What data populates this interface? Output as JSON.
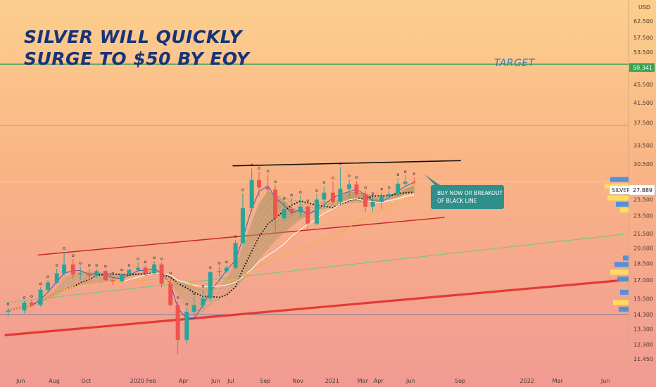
{
  "chart_data": {
    "type": "candlestick",
    "title_lines": [
      "SILVER WILL QUICKLY",
      "SURGE TO $50 BY EOY"
    ],
    "symbol": "SILVER",
    "currency_label": "USD",
    "last_price": 27.889,
    "target_label": "TARGET",
    "target_price": 50.341,
    "annotation_lines": [
      "BUY NOW OR BREAKOUT",
      "OF BLACK LINE"
    ],
    "y_scale": "log",
    "ylim": [
      11.45,
      62.5
    ],
    "y_ticks": [
      "62.500",
      "57.500",
      "53.500",
      "49.500",
      "45.500",
      "41.500",
      "37.500",
      "33.500",
      "30.500",
      "25.500",
      "23.500",
      "21.500",
      "20.000",
      "18.500",
      "17.000",
      "15.500",
      "14.300",
      "13.300",
      "12.300",
      "11.450"
    ],
    "x_ticks": [
      "Jun",
      "Aug",
      "Oct",
      "2020",
      "Feb",
      "Apr",
      "Jun",
      "Jul",
      "Sep",
      "Nov",
      "2021",
      "Mar",
      "Apr",
      "Jun",
      "Sep",
      "2022",
      "Mar",
      "Jun"
    ],
    "x_range_months": [
      "2019-05",
      "2022-07"
    ],
    "horizontal_levels": [
      50.341,
      37.0,
      27.889,
      14.3
    ],
    "trendlines": [
      {
        "from": [
          "2020-07",
          30.2
        ],
        "to": [
          "2021-09",
          31.0
        ],
        "color": "#111111"
      },
      {
        "from": [
          "2019-07",
          19.3
        ],
        "to": [
          "2021-08",
          23.3
        ],
        "color": "#c62828"
      },
      {
        "from": [
          "2019-05",
          12.9
        ],
        "to": [
          "2022-07",
          17.0
        ],
        "color": "#e53935"
      },
      {
        "from": [
          "2019-05",
          15.2
        ],
        "to": [
          "2022-07",
          21.4
        ],
        "color": "#7fc47f"
      }
    ],
    "candles": [
      {
        "t": "2019-05",
        "o": 14.5,
        "h": 14.8,
        "l": 14.1,
        "c": 14.6
      },
      {
        "t": "2019-06",
        "o": 14.6,
        "h": 15.3,
        "l": 14.4,
        "c": 15.2
      },
      {
        "t": "2019-06",
        "o": 15.2,
        "h": 15.4,
        "l": 14.9,
        "c": 15.0
      },
      {
        "t": "2019-07",
        "o": 15.0,
        "h": 16.4,
        "l": 14.9,
        "c": 16.2
      },
      {
        "t": "2019-07",
        "o": 16.2,
        "h": 17.0,
        "l": 16.0,
        "c": 16.8
      },
      {
        "t": "2019-08",
        "o": 16.8,
        "h": 18.0,
        "l": 16.7,
        "c": 17.6
      },
      {
        "t": "2019-08",
        "o": 17.6,
        "h": 19.6,
        "l": 17.4,
        "c": 18.4
      },
      {
        "t": "2019-09",
        "o": 18.4,
        "h": 18.9,
        "l": 17.1,
        "c": 17.5
      },
      {
        "t": "2019-09",
        "o": 17.5,
        "h": 18.2,
        "l": 17.0,
        "c": 17.6
      },
      {
        "t": "2019-10",
        "o": 17.6,
        "h": 18.0,
        "l": 17.0,
        "c": 17.4
      },
      {
        "t": "2019-10",
        "o": 17.4,
        "h": 18.0,
        "l": 17.2,
        "c": 17.8
      },
      {
        "t": "2019-11",
        "o": 17.8,
        "h": 17.9,
        "l": 16.9,
        "c": 17.0
      },
      {
        "t": "2019-11",
        "o": 17.0,
        "h": 17.3,
        "l": 16.6,
        "c": 16.9
      },
      {
        "t": "2019-12",
        "o": 16.9,
        "h": 17.6,
        "l": 16.8,
        "c": 17.5
      },
      {
        "t": "2019-12",
        "o": 17.5,
        "h": 18.0,
        "l": 17.3,
        "c": 17.9
      },
      {
        "t": "2020-01",
        "o": 17.9,
        "h": 18.6,
        "l": 17.7,
        "c": 18.1
      },
      {
        "t": "2020-01",
        "o": 18.1,
        "h": 18.3,
        "l": 17.4,
        "c": 17.6
      },
      {
        "t": "2020-02",
        "o": 17.6,
        "h": 18.7,
        "l": 17.5,
        "c": 18.4
      },
      {
        "t": "2020-02",
        "o": 18.4,
        "h": 18.6,
        "l": 16.4,
        "c": 16.7
      },
      {
        "t": "2020-03",
        "o": 16.7,
        "h": 17.3,
        "l": 14.9,
        "c": 15.0
      },
      {
        "t": "2020-03",
        "o": 15.0,
        "h": 15.3,
        "l": 11.7,
        "c": 12.6
      },
      {
        "t": "2020-04",
        "o": 12.6,
        "h": 14.8,
        "l": 12.4,
        "c": 14.5
      },
      {
        "t": "2020-04",
        "o": 14.5,
        "h": 15.6,
        "l": 14.2,
        "c": 15.0
      },
      {
        "t": "2020-05",
        "o": 15.0,
        "h": 16.2,
        "l": 14.7,
        "c": 15.5
      },
      {
        "t": "2020-05",
        "o": 15.5,
        "h": 17.8,
        "l": 15.3,
        "c": 17.7
      },
      {
        "t": "2020-06",
        "o": 17.7,
        "h": 18.2,
        "l": 17.3,
        "c": 17.8
      },
      {
        "t": "2020-06",
        "o": 17.8,
        "h": 18.3,
        "l": 17.6,
        "c": 18.1
      },
      {
        "t": "2020-07",
        "o": 18.1,
        "h": 20.8,
        "l": 18.0,
        "c": 20.5
      },
      {
        "t": "2020-07",
        "o": 20.5,
        "h": 26.3,
        "l": 20.3,
        "c": 24.4
      },
      {
        "t": "2020-08",
        "o": 24.4,
        "h": 29.8,
        "l": 24.0,
        "c": 28.1
      },
      {
        "t": "2020-08",
        "o": 28.1,
        "h": 29.3,
        "l": 25.9,
        "c": 27.1
      },
      {
        "t": "2020-09",
        "o": 27.1,
        "h": 28.9,
        "l": 26.4,
        "c": 26.8
      },
      {
        "t": "2020-09",
        "o": 26.8,
        "h": 27.4,
        "l": 21.7,
        "c": 23.2
      },
      {
        "t": "2020-10",
        "o": 23.2,
        "h": 25.2,
        "l": 22.9,
        "c": 24.3
      },
      {
        "t": "2020-10",
        "o": 24.3,
        "h": 25.6,
        "l": 23.5,
        "c": 23.9
      },
      {
        "t": "2020-11",
        "o": 23.9,
        "h": 26.0,
        "l": 23.3,
        "c": 24.6
      },
      {
        "t": "2020-11",
        "o": 24.6,
        "h": 24.9,
        "l": 21.9,
        "c": 22.6
      },
      {
        "t": "2020-12",
        "o": 22.6,
        "h": 26.2,
        "l": 22.4,
        "c": 25.5
      },
      {
        "t": "2020-12",
        "o": 25.5,
        "h": 27.3,
        "l": 24.3,
        "c": 26.4
      },
      {
        "t": "2021-01",
        "o": 26.4,
        "h": 27.9,
        "l": 24.8,
        "c": 25.2
      },
      {
        "t": "2021-01",
        "o": 25.2,
        "h": 30.0,
        "l": 24.9,
        "c": 26.9
      },
      {
        "t": "2021-02",
        "o": 26.9,
        "h": 28.2,
        "l": 25.8,
        "c": 27.5
      },
      {
        "t": "2021-02",
        "o": 27.5,
        "h": 28.0,
        "l": 25.9,
        "c": 26.2
      },
      {
        "t": "2021-03",
        "o": 26.2,
        "h": 26.6,
        "l": 24.0,
        "c": 24.6
      },
      {
        "t": "2021-03",
        "o": 24.6,
        "h": 25.8,
        "l": 24.0,
        "c": 25.2
      },
      {
        "t": "2021-04",
        "o": 25.2,
        "h": 26.4,
        "l": 24.3,
        "c": 25.9
      },
      {
        "t": "2021-04",
        "o": 25.9,
        "h": 26.6,
        "l": 25.6,
        "c": 26.2
      },
      {
        "t": "2021-05",
        "o": 26.2,
        "h": 28.4,
        "l": 25.9,
        "c": 27.6
      },
      {
        "t": "2021-05",
        "o": 27.6,
        "h": 28.8,
        "l": 27.2,
        "c": 27.9
      },
      {
        "t": "2021-06",
        "o": 27.9,
        "h": 28.5,
        "l": 27.5,
        "c": 27.889
      }
    ]
  }
}
